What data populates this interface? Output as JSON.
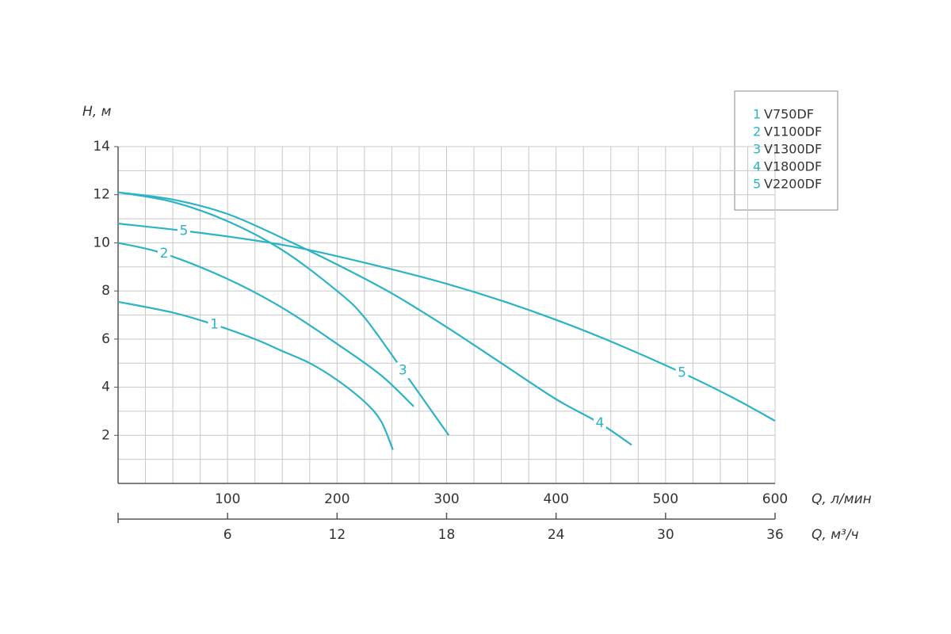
{
  "chart_data": {
    "type": "line",
    "ylabel": "H, м",
    "xlabel": "Q, л/мин",
    "x2label": "Q, м³/ч",
    "xlim": [
      0,
      600
    ],
    "xticks": [
      100,
      200,
      300,
      400,
      500,
      600
    ],
    "x2lim": [
      0,
      36
    ],
    "x2ticks": [
      6,
      12,
      18,
      24,
      30,
      36
    ],
    "ylim": [
      0,
      14
    ],
    "yticks": [
      2,
      4,
      6,
      8,
      10,
      12,
      14
    ],
    "x_minor_ticks": [
      25,
      50,
      75,
      125,
      150,
      175,
      225,
      250,
      275,
      325,
      350,
      375,
      425,
      450,
      475,
      525,
      550,
      575
    ],
    "y_minor_ticks": [
      1,
      3,
      5,
      7,
      9,
      11,
      13
    ],
    "grid": true,
    "legend": "upper right",
    "series": [
      {
        "label": "1",
        "name": "V750DF",
        "color": "#2bb3c6",
        "x": [
          0,
          50,
          88,
          125,
          150,
          175,
          200,
          225,
          240,
          251
        ],
        "values": [
          7.55,
          7.1,
          6.6,
          6.0,
          5.5,
          5.0,
          4.3,
          3.4,
          2.6,
          1.4
        ]
      },
      {
        "label": "2",
        "name": "V1100DF",
        "color": "#2bb3c6",
        "x": [
          0,
          42,
          100,
          150,
          200,
          240,
          270
        ],
        "values": [
          10.0,
          9.55,
          8.5,
          7.3,
          5.8,
          4.5,
          3.2
        ]
      },
      {
        "label": "3",
        "name": "V1300DF",
        "color": "#2bb3c6",
        "x": [
          0,
          50,
          100,
          150,
          200,
          225,
          260,
          302
        ],
        "values": [
          12.1,
          11.7,
          10.9,
          9.7,
          8.0,
          6.9,
          4.7,
          2.0
        ]
      },
      {
        "label": "4",
        "name": "V1800DF",
        "color": "#2bb3c6",
        "x": [
          0,
          50,
          100,
          150,
          200,
          250,
          300,
          350,
          400,
          440,
          469
        ],
        "values": [
          12.1,
          11.8,
          11.2,
          10.2,
          9.1,
          7.9,
          6.5,
          5.0,
          3.5,
          2.5,
          1.6
        ]
      },
      {
        "label": "5",
        "name": "V2200DF",
        "color": "#2bb3c6",
        "x": [
          0,
          60,
          125,
          175,
          250,
          300,
          350,
          400,
          450,
          515,
          560,
          600
        ],
        "values": [
          10.8,
          10.5,
          10.1,
          9.7,
          8.9,
          8.3,
          7.6,
          6.8,
          5.9,
          4.6,
          3.6,
          2.6
        ]
      }
    ]
  }
}
